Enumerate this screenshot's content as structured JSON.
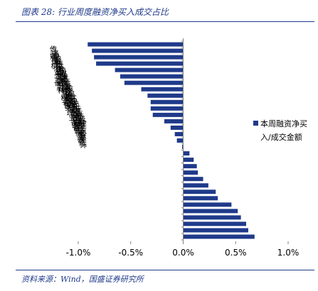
{
  "header": {
    "title": "图表 28:  行业周度融资净买入成交占比"
  },
  "footer": {
    "source": "资料来源：Wind，国盛证券研究所"
  },
  "chart_data": {
    "type": "bar",
    "orientation": "horizontal",
    "categories": [
      "传媒",
      "计算机",
      "通信",
      "电子",
      "国防军工",
      "有色金属",
      "银行",
      "非银金融",
      "食品饮料",
      "钢铁",
      "煤炭",
      "建筑材料",
      "基础化工",
      "交通运输",
      "商贸零售",
      "社会服务",
      "综合",
      "美容护理",
      "房地产",
      "公用事业",
      "环保",
      "电力设备",
      "农林牧渔",
      "机械设备",
      "石油石化",
      "医药生物",
      "汽车",
      "纺织服饰",
      "家用电器",
      "轻工制造",
      "建筑装饰"
    ],
    "visible_labels": [
      "传媒",
      "计算机",
      "通信",
      "电子",
      "国防军工",
      "有色金属",
      "银行",
      "非银金融",
      "食品饮料",
      "钢铁",
      "煤炭",
      "建筑材料",
      "基础化工",
      "交通运输",
      "商贸零售",
      "社会服务",
      "综合",
      "美容护理",
      "房地产",
      "公用事业",
      "环保",
      "电力设备",
      "农林牧渔",
      "机械设备",
      "石油石化",
      "医药生物",
      "汽车",
      "纺织服饰",
      "家用电器",
      "轻工制造",
      "建筑装饰"
    ],
    "values": [
      -0.91,
      -0.87,
      -0.85,
      -0.83,
      -0.65,
      -0.6,
      -0.56,
      -0.4,
      -0.34,
      -0.31,
      -0.31,
      -0.29,
      -0.18,
      -0.12,
      -0.08,
      -0.06,
      -0.01,
      0.06,
      0.1,
      0.13,
      0.14,
      0.19,
      0.24,
      0.31,
      0.33,
      0.46,
      0.52,
      0.55,
      0.6,
      0.62,
      0.68
    ],
    "series": [
      {
        "name": "本周融资净买入/成交金额"
      }
    ],
    "xlim": [
      -1.0,
      1.0
    ],
    "xticks": [
      -1.0,
      -0.5,
      0.0,
      0.5,
      1.0
    ],
    "xtick_labels": [
      "-1.0%",
      "-0.5%",
      "0.0%",
      "0.5%",
      "1.0%"
    ],
    "legend": "right",
    "colors": {
      "bar": "#1f3a8a",
      "axis": "#808080",
      "text": "#000000"
    }
  }
}
